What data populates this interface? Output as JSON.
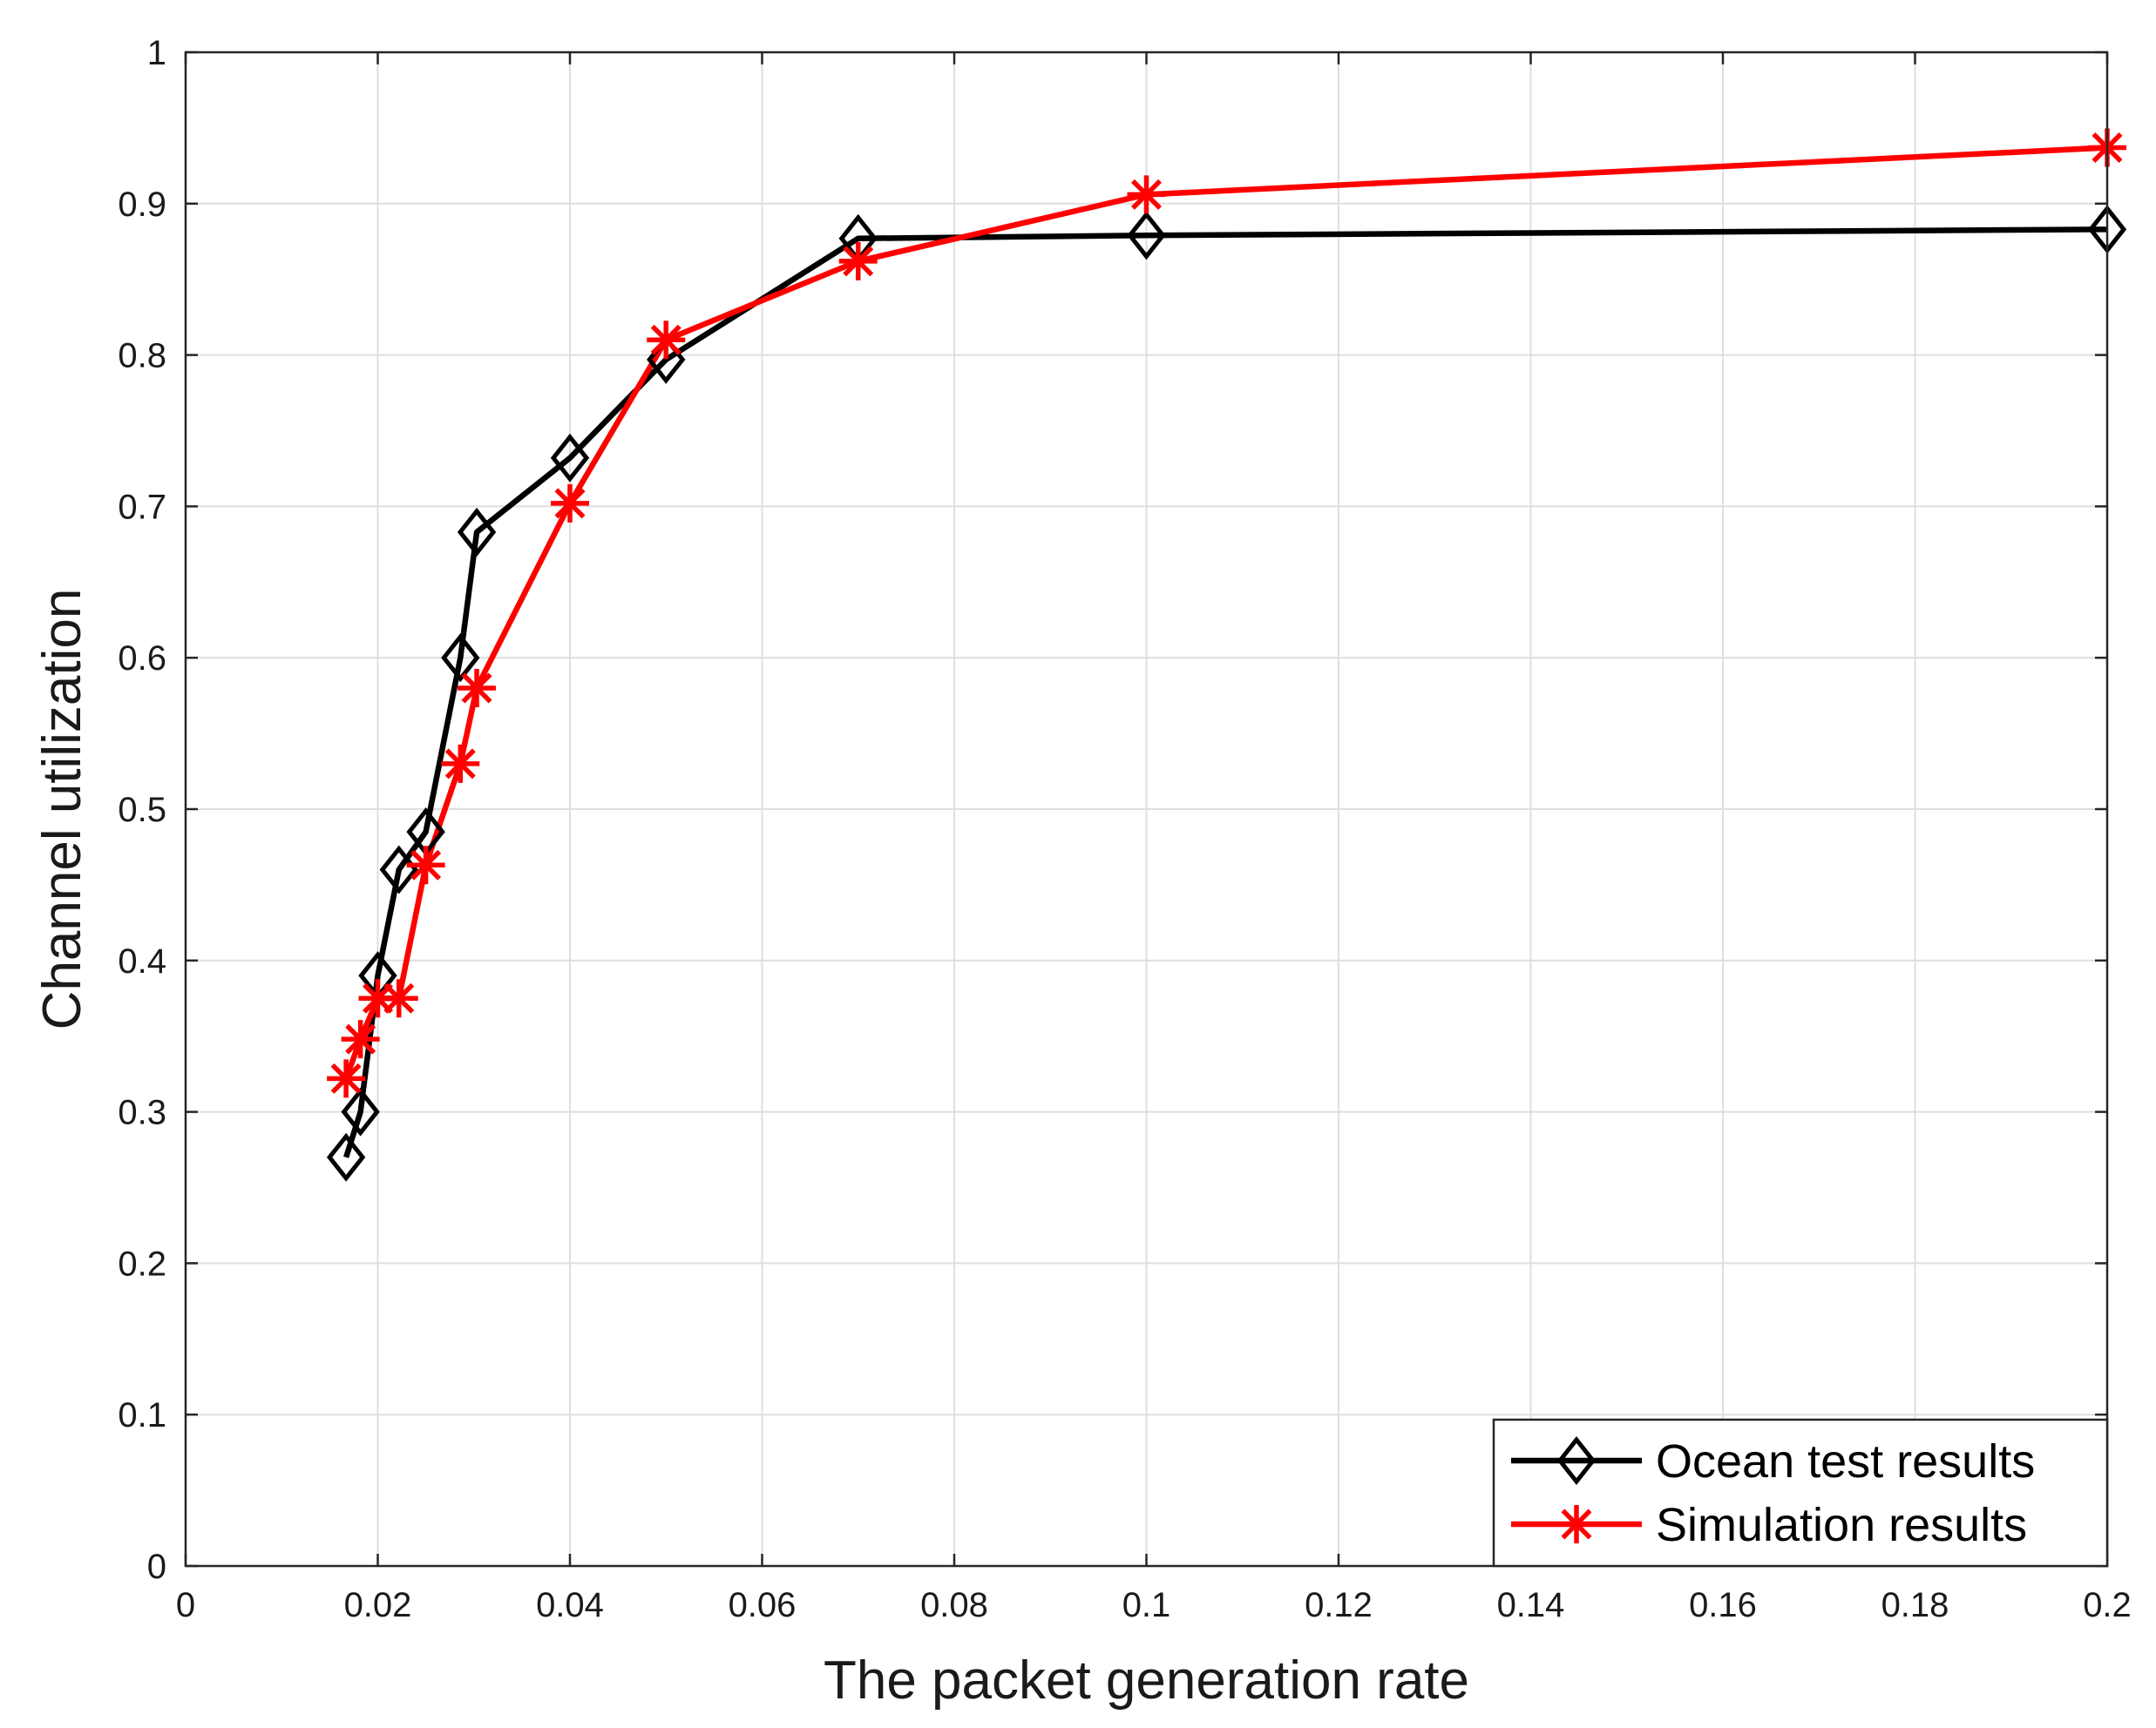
{
  "chart_data": {
    "type": "line",
    "title": "",
    "xlabel": "The packet generation rate",
    "ylabel": "Channel utilization",
    "xlim": [
      0,
      0.2
    ],
    "ylim": [
      0,
      1
    ],
    "xticks": [
      0,
      0.02,
      0.04,
      0.06,
      0.08,
      0.1,
      0.12,
      0.14,
      0.16,
      0.18,
      0.2
    ],
    "xtick_labels": [
      "0",
      "0.02",
      "0.04",
      "0.06",
      "0.08",
      "0.1",
      "0.12",
      "0.14",
      "0.16",
      "0.18",
      "0.2"
    ],
    "yticks": [
      0,
      0.1,
      0.2,
      0.3,
      0.4,
      0.5,
      0.6,
      0.7,
      0.8,
      0.9,
      1
    ],
    "ytick_labels": [
      "0",
      "0.1",
      "0.2",
      "0.3",
      "0.4",
      "0.5",
      "0.6",
      "0.7",
      "0.8",
      "0.9",
      "1"
    ],
    "grid": true,
    "legend_position": "bottom-right",
    "series": [
      {
        "name": "Ocean test results",
        "color": "#000000",
        "marker": "diamond",
        "points": [
          [
            0.0167,
            0.27
          ],
          [
            0.0182,
            0.3
          ],
          [
            0.02,
            0.39
          ],
          [
            0.0222,
            0.46
          ],
          [
            0.025,
            0.485
          ],
          [
            0.0286,
            0.6
          ],
          [
            0.0303,
            0.683
          ],
          [
            0.04,
            0.732
          ],
          [
            0.05,
            0.797
          ],
          [
            0.07,
            0.877
          ],
          [
            0.1,
            0.879
          ],
          [
            0.2,
            0.883
          ]
        ]
      },
      {
        "name": "Simulation results",
        "color": "#ff0000",
        "marker": "asterisk",
        "points": [
          [
            0.0167,
            0.322
          ],
          [
            0.0182,
            0.348
          ],
          [
            0.02,
            0.375
          ],
          [
            0.0222,
            0.375
          ],
          [
            0.025,
            0.463
          ],
          [
            0.0286,
            0.53
          ],
          [
            0.0303,
            0.58
          ],
          [
            0.04,
            0.702
          ],
          [
            0.05,
            0.81
          ],
          [
            0.07,
            0.862
          ],
          [
            0.1,
            0.906
          ],
          [
            0.2,
            0.937
          ]
        ]
      }
    ]
  }
}
